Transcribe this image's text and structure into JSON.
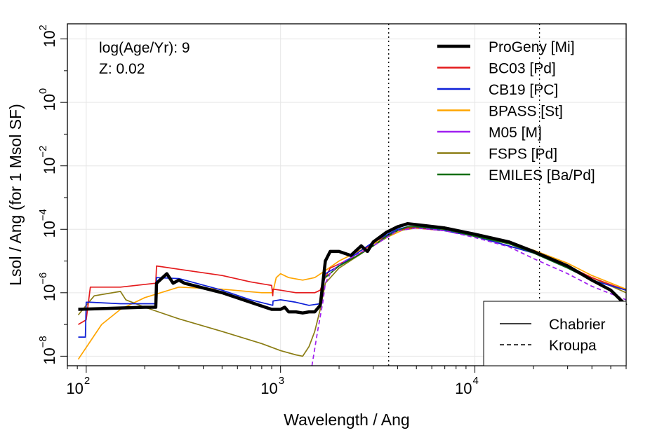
{
  "chart_data": {
    "type": "line",
    "title": "",
    "xlabel": "Wavelength / Ang",
    "ylabel": "Lsol / Ang (for 1 Msol SF)",
    "x_scale": "log",
    "y_scale": "log",
    "xlim": [
      80,
      60000
    ],
    "ylim": [
      5e-09,
      300
    ],
    "grid": true,
    "x_ticks": [
      {
        "value": 100,
        "base": "10",
        "exp": "2"
      },
      {
        "value": 1000,
        "base": "10",
        "exp": "3"
      },
      {
        "value": 10000,
        "base": "10",
        "exp": "4"
      }
    ],
    "y_ticks": [
      {
        "value": 100,
        "base": "10",
        "exp": "2"
      },
      {
        "value": 1,
        "base": "10",
        "exp": "0"
      },
      {
        "value": 0.01,
        "base": "10",
        "exp": "−2"
      },
      {
        "value": 0.0001,
        "base": "10",
        "exp": "−4"
      },
      {
        "value": 1e-06,
        "base": "10",
        "exp": "−6"
      },
      {
        "value": 1e-08,
        "base": "10",
        "exp": "−8"
      }
    ],
    "annotation_lines": [
      "log(Age/Yr): 9",
      "Z: 0.02"
    ],
    "vlines": [
      3600,
      21500
    ],
    "legend_placement": "top-right",
    "linestyle_legend": {
      "placement": "bottom-right",
      "entries": [
        {
          "label": "Chabrier",
          "dash": "solid"
        },
        {
          "label": "Kroupa",
          "dash": "dashed"
        }
      ]
    },
    "series": [
      {
        "name": "BC03 [Pd]",
        "color": "#e41a1c",
        "dash": "solid",
        "x": [
          91,
          100,
          105,
          150,
          228,
          230,
          300,
          500,
          700,
          900,
          912,
          915,
          1000,
          1200,
          1350,
          1500,
          1600,
          1650,
          1700,
          1800,
          2000,
          2500,
          3000,
          3500,
          4000,
          4500,
          5000,
          7000,
          10000,
          15000,
          20000,
          30000,
          40000,
          50000,
          60000
        ],
        "y": [
          1e-07,
          1.4e-07,
          1.5e-06,
          1.5e-06,
          2e-06,
          7e-06,
          5.5e-06,
          3.5e-06,
          2.2e-06,
          1.7e-06,
          8e-07,
          1.3e-06,
          1.2e-06,
          1e-06,
          1e-06,
          1e-06,
          1.2e-06,
          2e-06,
          3e-06,
          6e-06,
          8e-06,
          1.5e-05,
          4e-05,
          6e-05,
          9e-05,
          0.00011,
          0.00011,
          9e-05,
          6e-05,
          3.5e-05,
          1.8e-05,
          7e-06,
          3e-06,
          1.8e-06,
          1.2e-06
        ]
      },
      {
        "name": "CB19 [PC]",
        "color": "#0d1fd8",
        "dash": "solid",
        "x": [
          91,
          99,
          100,
          105,
          150,
          228,
          230,
          300,
          500,
          700,
          912,
          915,
          1000,
          1200,
          1400,
          1600,
          1700,
          2000,
          3000,
          4000,
          4500,
          5000,
          7000,
          10000,
          20000,
          30000,
          40000,
          60000
        ],
        "y": [
          4e-08,
          4e-08,
          5e-07,
          5e-07,
          4.5e-07,
          4.5e-07,
          3e-06,
          2.8e-06,
          1.2e-06,
          6e-07,
          4e-07,
          5.5e-07,
          6e-07,
          5e-07,
          4e-07,
          4.5e-07,
          4e-06,
          7e-06,
          4e-05,
          0.0001,
          0.00012,
          0.00012,
          9e-05,
          6e-05,
          1.8e-05,
          6e-06,
          2.5e-06,
          1.2e-06
        ]
      },
      {
        "name": "BPASS [St]",
        "color": "#ffa500",
        "dash": "solid",
        "x": [
          91,
          120,
          150,
          200,
          300,
          500,
          800,
          912,
          950,
          1000,
          1100,
          1300,
          1500,
          1700,
          2000,
          3000,
          4000,
          4500,
          5000,
          7000,
          10000,
          15000,
          20000,
          30000,
          40000,
          60000
        ],
        "y": [
          8e-09,
          1e-07,
          3e-07,
          7e-07,
          1.5e-06,
          1.3e-06,
          1e-06,
          1e-06,
          3e-06,
          4e-06,
          3e-06,
          2.5e-06,
          3e-06,
          5e-06,
          1e-05,
          3.5e-05,
          8e-05,
          0.00011,
          0.00011,
          0.0001,
          7e-05,
          4e-05,
          2.2e-05,
          8.5e-06,
          3.5e-06,
          1.3e-06
        ]
      },
      {
        "name": "M05 [M]",
        "color": "#a020f0",
        "dash": "dashed",
        "x": [
          1450,
          1550,
          1650,
          1700,
          1800,
          2000,
          3000,
          4000,
          5000,
          7000,
          10000,
          15000,
          20000,
          30000,
          40000,
          60000
        ],
        "y": [
          5e-09,
          6e-08,
          5e-07,
          2e-06,
          4e-06,
          8e-06,
          3e-05,
          9e-05,
          0.00011,
          9e-05,
          5.5e-05,
          2.8e-05,
          1.2e-05,
          4e-06,
          1.6e-06,
          6e-07
        ]
      },
      {
        "name": "FSPS [Pd]",
        "color": "#8b7d14",
        "dash": "solid",
        "x": [
          91,
          100,
          110,
          150,
          160,
          200,
          300,
          500,
          800,
          1000,
          1200,
          1300,
          1400,
          1500,
          1600,
          1700,
          2000,
          3000,
          4000,
          5000,
          7000,
          10000,
          20000,
          40000,
          60000
        ],
        "y": [
          2e-07,
          4e-07,
          8e-07,
          1.1e-06,
          6e-07,
          3.5e-07,
          1.5e-07,
          6e-08,
          2.5e-08,
          1.5e-08,
          1.1e-08,
          1e-08,
          2e-08,
          6e-08,
          3e-07,
          2e-06,
          6e-06,
          3e-05,
          9e-05,
          0.00011,
          9e-05,
          6e-05,
          1.8e-05,
          3e-06,
          1e-06
        ]
      },
      {
        "name": "EMILES [Ba/Pd]",
        "color": "#0a6e0a",
        "dash": "solid",
        "x": [
          1700,
          2000,
          2500,
          3000,
          3500,
          4000,
          4500,
          5000,
          7000,
          10000,
          15000,
          20000,
          30000,
          40000,
          50000
        ],
        "y": [
          3e-06,
          7e-06,
          1.5e-05,
          3e-05,
          6e-05,
          9e-05,
          0.00012,
          0.00012,
          0.0001,
          6e-05,
          3.5e-05,
          1.8e-05,
          6e-06,
          2.5e-06,
          1.2e-06
        ]
      },
      {
        "name": "ProGeny [Mi]",
        "color": "#000000",
        "dash": "solid",
        "bold": true,
        "x": [
          91,
          200,
          228,
          230,
          260,
          280,
          300,
          320,
          500,
          700,
          900,
          1000,
          1050,
          1100,
          1200,
          1300,
          1400,
          1500,
          1600,
          1650,
          1700,
          1800,
          2000,
          2300,
          2600,
          2800,
          3000,
          3500,
          4000,
          4500,
          5000,
          7000,
          10000,
          15000,
          20000,
          30000,
          40000,
          50000,
          60000
        ],
        "y": [
          3e-07,
          3.5e-07,
          3.5e-07,
          2e-06,
          4e-06,
          2e-06,
          2.5e-06,
          2e-06,
          1e-06,
          5e-07,
          3e-07,
          3e-07,
          3.5e-07,
          2.5e-07,
          2.5e-07,
          2.3e-07,
          2.5e-07,
          2.5e-07,
          4e-07,
          2e-06,
          1e-05,
          2e-05,
          2e-05,
          1.5e-05,
          3e-05,
          2e-05,
          4e-05,
          8e-05,
          0.00012,
          0.00015,
          0.00014,
          0.00011,
          7e-05,
          4e-05,
          2e-05,
          7e-06,
          2.5e-06,
          1.2e-06,
          4e-07
        ]
      }
    ],
    "legend_order": [
      "ProGeny [Mi]",
      "BC03 [Pd]",
      "CB19 [PC]",
      "BPASS [St]",
      "M05 [M]",
      "FSPS [Pd]",
      "EMILES [Ba/Pd]"
    ]
  }
}
